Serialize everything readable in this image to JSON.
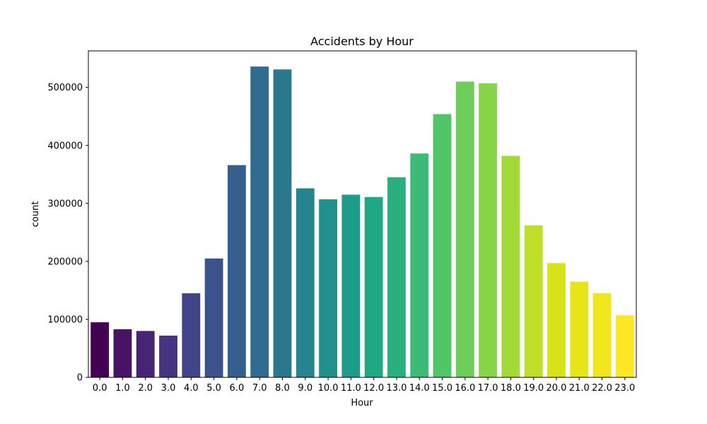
{
  "chart_data": {
    "type": "bar",
    "title": "Accidents by Hour",
    "xlabel": "Hour",
    "ylabel": "count",
    "categories": [
      "0.0",
      "1.0",
      "2.0",
      "3.0",
      "4.0",
      "5.0",
      "6.0",
      "7.0",
      "8.0",
      "9.0",
      "10.0",
      "11.0",
      "12.0",
      "13.0",
      "14.0",
      "15.0",
      "16.0",
      "17.0",
      "18.0",
      "19.0",
      "20.0",
      "21.0",
      "22.0",
      "23.0"
    ],
    "values": [
      95000,
      83000,
      80000,
      72000,
      145000,
      205000,
      366000,
      536000,
      531000,
      326000,
      307000,
      315000,
      311000,
      345000,
      386000,
      454000,
      510000,
      507000,
      382000,
      262000,
      197000,
      165000,
      145000,
      107000
    ],
    "ylim": [
      0,
      563000
    ],
    "yticks": [
      0,
      100000,
      200000,
      300000,
      400000,
      500000
    ],
    "ytick_labels": [
      "0",
      "100000",
      "200000",
      "300000",
      "400000",
      "500000"
    ],
    "colors": [
      "#440154",
      "#471365",
      "#482475",
      "#463480",
      "#414487",
      "#3b528b",
      "#355f8d",
      "#2f6c8e",
      "#2a788e",
      "#25848e",
      "#21918c",
      "#1e9c89",
      "#20a884",
      "#2ab07f",
      "#3bbb75",
      "#52c569",
      "#6ccd5a",
      "#86d549",
      "#a2da37",
      "#bede27",
      "#d8e219",
      "#e7e419",
      "#f1e51d",
      "#fde725"
    ],
    "grid": false,
    "legend": "none"
  }
}
